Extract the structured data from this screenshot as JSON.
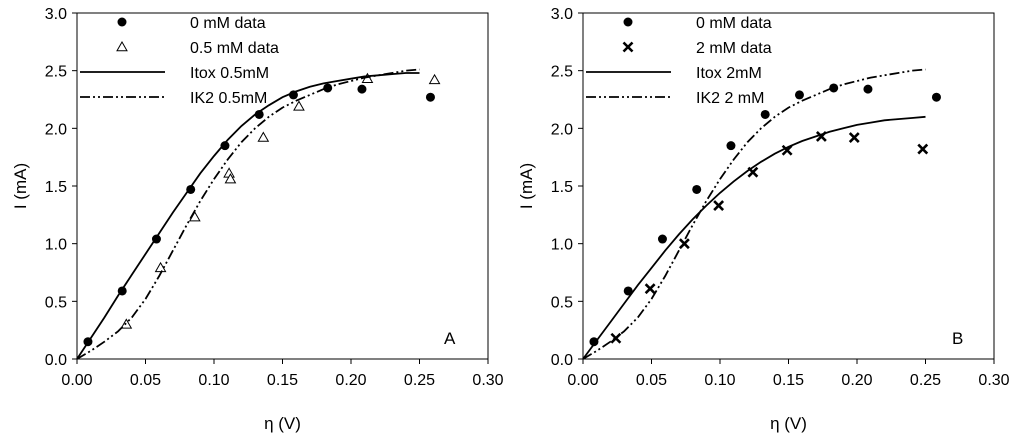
{
  "chart_data": [
    {
      "type": "scatter",
      "panel_label": "A",
      "xlabel": "η (V)",
      "ylabel": "I (mA)",
      "xlim": [
        0.0,
        0.3
      ],
      "ylim": [
        0.0,
        3.0
      ],
      "xticks": [
        "0.00",
        "0.05",
        "0.10",
        "0.15",
        "0.20",
        "0.25",
        "0.30"
      ],
      "yticks": [
        "0.0",
        "0.5",
        "1.0",
        "1.5",
        "2.0",
        "2.5",
        "3.0"
      ],
      "grid": false,
      "legend_position": "top-left",
      "series": [
        {
          "name": "0 mM data",
          "kind": "points",
          "marker": "filled-circle",
          "x": [
            0.008,
            0.033,
            0.058,
            0.083,
            0.108,
            0.133,
            0.158,
            0.183,
            0.208,
            0.258
          ],
          "y": [
            0.15,
            0.59,
            1.04,
            1.47,
            1.85,
            2.12,
            2.29,
            2.35,
            2.34,
            2.27
          ]
        },
        {
          "name": "0.5 mM data",
          "kind": "points",
          "marker": "open-triangle",
          "x": [
            0.036,
            0.061,
            0.086,
            0.111,
            0.112,
            0.136,
            0.162,
            0.212,
            0.261
          ],
          "y": [
            0.3,
            0.79,
            1.23,
            1.61,
            1.56,
            1.92,
            2.19,
            2.43,
            2.42
          ]
        },
        {
          "name": "Itox 0.5mM",
          "kind": "line",
          "dash": "solid",
          "x": [
            0.0,
            0.01,
            0.02,
            0.03,
            0.04,
            0.05,
            0.06,
            0.07,
            0.08,
            0.09,
            0.1,
            0.11,
            0.12,
            0.13,
            0.14,
            0.15,
            0.16,
            0.17,
            0.18,
            0.19,
            0.2,
            0.21,
            0.22,
            0.23,
            0.24,
            0.25
          ],
          "y": [
            0.0,
            0.18,
            0.36,
            0.55,
            0.73,
            0.91,
            1.09,
            1.27,
            1.44,
            1.61,
            1.76,
            1.9,
            2.02,
            2.12,
            2.2,
            2.27,
            2.32,
            2.36,
            2.39,
            2.41,
            2.43,
            2.45,
            2.46,
            2.47,
            2.48,
            2.48
          ]
        },
        {
          "name": "IK2 0.5mM",
          "kind": "line",
          "dash": "dash-dot-dot",
          "x": [
            0.0,
            0.01,
            0.02,
            0.03,
            0.04,
            0.05,
            0.06,
            0.07,
            0.08,
            0.09,
            0.1,
            0.11,
            0.12,
            0.13,
            0.14,
            0.15,
            0.16,
            0.17,
            0.18,
            0.19,
            0.2,
            0.21,
            0.22,
            0.23,
            0.24,
            0.25
          ],
          "y": [
            0.0,
            0.07,
            0.15,
            0.24,
            0.36,
            0.52,
            0.72,
            0.94,
            1.16,
            1.37,
            1.56,
            1.73,
            1.88,
            2.0,
            2.1,
            2.18,
            2.24,
            2.29,
            2.34,
            2.38,
            2.41,
            2.44,
            2.46,
            2.48,
            2.5,
            2.51
          ]
        }
      ]
    },
    {
      "type": "scatter",
      "panel_label": "B",
      "xlabel": "η (V)",
      "ylabel": "I (mA)",
      "xlim": [
        0.0,
        0.3
      ],
      "ylim": [
        0.0,
        3.0
      ],
      "xticks": [
        "0.00",
        "0.05",
        "0.10",
        "0.15",
        "0.20",
        "0.25",
        "0.30"
      ],
      "yticks": [
        "0.0",
        "0.5",
        "1.0",
        "1.5",
        "2.0",
        "2.5",
        "3.0"
      ],
      "grid": false,
      "legend_position": "top-left",
      "series": [
        {
          "name": "0 mM data",
          "kind": "points",
          "marker": "filled-circle",
          "x": [
            0.008,
            0.033,
            0.058,
            0.083,
            0.108,
            0.133,
            0.158,
            0.183,
            0.208,
            0.258
          ],
          "y": [
            0.15,
            0.59,
            1.04,
            1.47,
            1.85,
            2.12,
            2.29,
            2.35,
            2.34,
            2.27
          ]
        },
        {
          "name": "2 mM data",
          "kind": "points",
          "marker": "x-cross",
          "x": [
            0.024,
            0.049,
            0.074,
            0.099,
            0.124,
            0.149,
            0.174,
            0.198,
            0.248
          ],
          "y": [
            0.18,
            0.61,
            1.0,
            1.33,
            1.62,
            1.81,
            1.93,
            1.92,
            1.82
          ]
        },
        {
          "name": "Itox 2mM",
          "kind": "line",
          "dash": "solid",
          "x": [
            0.0,
            0.01,
            0.02,
            0.03,
            0.04,
            0.05,
            0.06,
            0.07,
            0.08,
            0.09,
            0.1,
            0.11,
            0.12,
            0.13,
            0.14,
            0.15,
            0.16,
            0.17,
            0.18,
            0.19,
            0.2,
            0.21,
            0.22,
            0.23,
            0.24,
            0.25
          ],
          "y": [
            0.0,
            0.16,
            0.32,
            0.48,
            0.64,
            0.79,
            0.94,
            1.08,
            1.21,
            1.33,
            1.44,
            1.54,
            1.63,
            1.71,
            1.78,
            1.84,
            1.89,
            1.93,
            1.97,
            2.0,
            2.03,
            2.05,
            2.07,
            2.08,
            2.09,
            2.1
          ]
        },
        {
          "name": "IK2 2 mM",
          "kind": "line",
          "dash": "dash-dot-dot",
          "x": [
            0.0,
            0.01,
            0.02,
            0.03,
            0.04,
            0.05,
            0.06,
            0.07,
            0.08,
            0.09,
            0.1,
            0.11,
            0.12,
            0.13,
            0.14,
            0.15,
            0.16,
            0.17,
            0.18,
            0.19,
            0.2,
            0.21,
            0.22,
            0.23,
            0.24,
            0.25
          ],
          "y": [
            0.0,
            0.07,
            0.15,
            0.24,
            0.36,
            0.52,
            0.72,
            0.94,
            1.16,
            1.37,
            1.56,
            1.73,
            1.88,
            2.0,
            2.1,
            2.18,
            2.24,
            2.29,
            2.34,
            2.38,
            2.41,
            2.44,
            2.46,
            2.48,
            2.5,
            2.51
          ]
        }
      ]
    }
  ]
}
